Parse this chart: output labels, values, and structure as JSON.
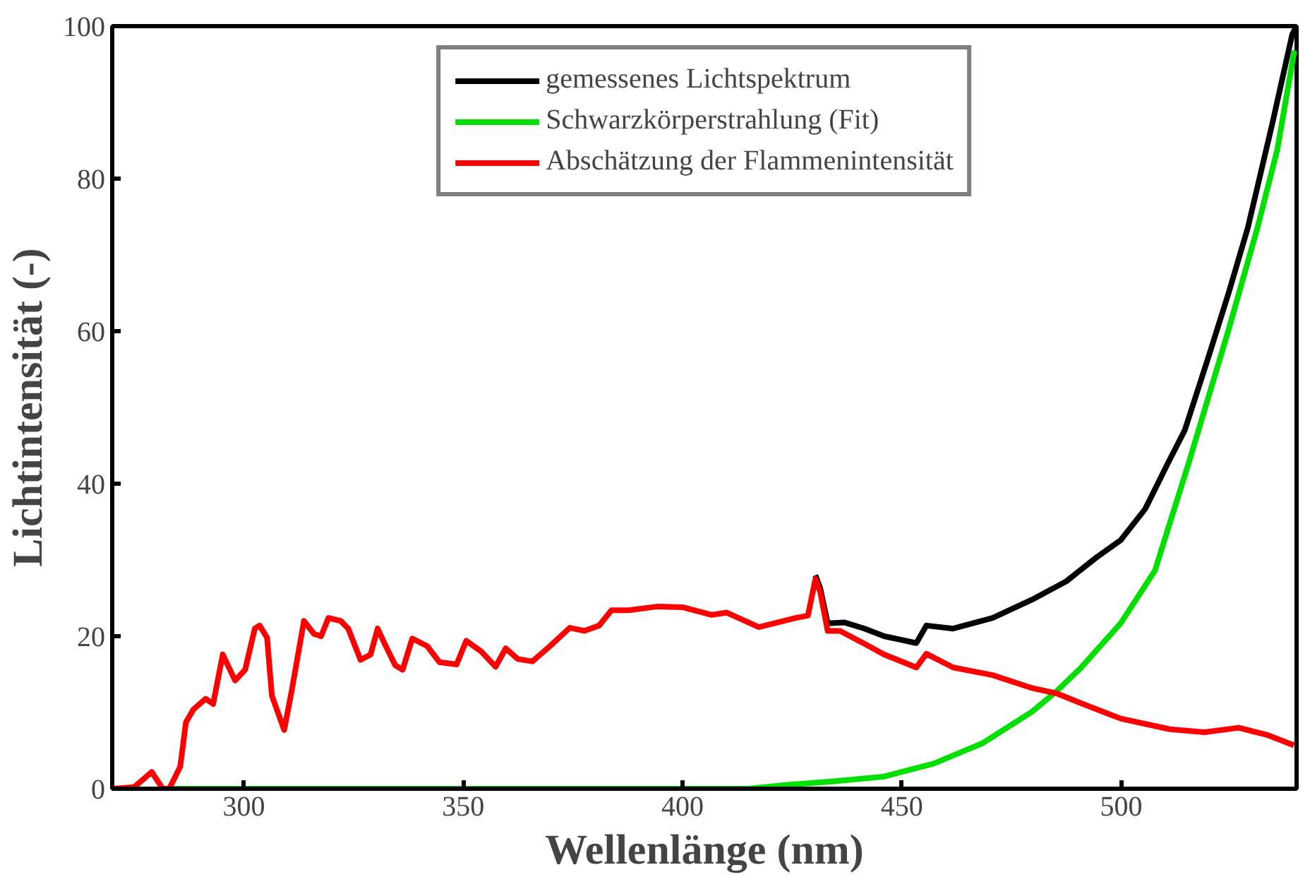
{
  "chart_data": {
    "type": "line",
    "xlabel": "Wellenlänge (nm)",
    "ylabel": "Lichtintensität (-)",
    "xlim": [
      270,
      540
    ],
    "ylim": [
      0,
      100
    ],
    "xticks": [
      300,
      350,
      400,
      450,
      500
    ],
    "yticks": [
      0,
      20,
      40,
      60,
      80,
      100
    ],
    "grid": false,
    "legend": "top",
    "marker": "none",
    "line_style": "solid",
    "series": [
      {
        "name": "gemessenes Lichtspektrum",
        "color": "#000000",
        "x": [
          430.3,
          431.4,
          433.1,
          437,
          441.5,
          446,
          453.3,
          455.6,
          461.7,
          470.7,
          479.7,
          487.5,
          494.3,
          499.9,
          505.5,
          510.5,
          514.5,
          519.9,
          524.5,
          528.9,
          534.5,
          539,
          540
        ],
        "values": [
          28.0,
          26.3,
          21.7,
          21.8,
          21.0,
          20.0,
          19.1,
          21.4,
          21.0,
          22.4,
          24.8,
          27.2,
          30.3,
          32.6,
          36.7,
          42.5,
          47.0,
          56.6,
          65,
          73.6,
          87.3,
          98.9,
          100
        ]
      },
      {
        "name": "Schwarzkörperstrahlung (Fit)",
        "color": "#00e000",
        "x": [
          283,
          350,
          415,
          424,
          435,
          446,
          457.3,
          468.5,
          479.7,
          485.3,
          490.9,
          499.9,
          507.7,
          515.5,
          524.4,
          531.1,
          535.6,
          539.5
        ],
        "values": [
          0,
          0,
          0,
          0.5,
          1.0,
          1.6,
          3.3,
          6.0,
          10.1,
          12.8,
          15.9,
          21.7,
          28.6,
          42.9,
          60.0,
          73.6,
          83.8,
          96.8
        ]
      },
      {
        "name": "Abschätzung der Flammenintensität",
        "color": "#ff0000",
        "x": [
          270,
          275,
          279,
          281.5,
          283,
          285.5,
          286.8,
          288.5,
          291.3,
          293,
          295.2,
          298,
          300.3,
          302.5,
          303.6,
          305.3,
          306.4,
          309.2,
          310.9,
          313.7,
          316,
          317.6,
          319.3,
          322.1,
          323.8,
          326.6,
          328.9,
          330.5,
          332.2,
          334.5,
          336.2,
          338.4,
          341.8,
          344.6,
          348.5,
          350.7,
          354.1,
          357.4,
          359.7,
          362.5,
          365.8,
          369.8,
          374.3,
          377.6,
          381,
          383.8,
          387.7,
          394.4,
          400,
          406.7,
          410.1,
          417.4,
          425.8,
          428.6,
          430.3,
          431.4,
          433.1,
          435.9,
          441.5,
          446,
          453.3,
          455.6,
          461.7,
          470.7,
          479.7,
          485.3,
          490.9,
          499.9,
          511.1,
          519,
          526.8,
          533.6,
          539.4
        ],
        "values": [
          0,
          0.2,
          2.2,
          0,
          0,
          2.9,
          8.7,
          10.4,
          11.8,
          11.1,
          17.6,
          14.2,
          15.6,
          21.0,
          21.4,
          19.8,
          12.2,
          7.7,
          12.8,
          22.0,
          20.3,
          20.0,
          22.4,
          22.0,
          21.0,
          16.9,
          17.6,
          21.0,
          18.9,
          16.2,
          15.6,
          19.7,
          18.7,
          16.6,
          16.3,
          19.4,
          18.0,
          16.0,
          18.4,
          17.0,
          16.7,
          18.7,
          21.1,
          20.7,
          21.4,
          23.4,
          23.4,
          23.9,
          23.8,
          22.8,
          23.1,
          21.2,
          22.4,
          22.7,
          27.5,
          25.8,
          20.7,
          20.7,
          19.0,
          17.6,
          15.9,
          17.7,
          15.9,
          14.9,
          13.2,
          12.5,
          11.2,
          9.2,
          7.8,
          7.4,
          8.0,
          7.0,
          5.7
        ]
      }
    ]
  }
}
